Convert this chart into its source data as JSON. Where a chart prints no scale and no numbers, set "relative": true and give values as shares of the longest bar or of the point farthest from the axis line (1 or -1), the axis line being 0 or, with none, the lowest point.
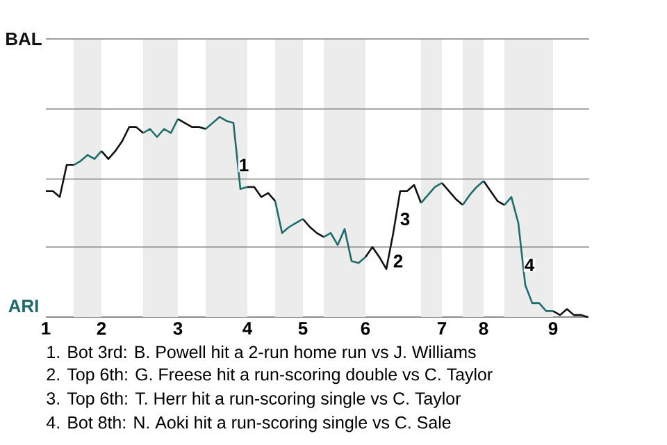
{
  "chart_data": {
    "type": "line",
    "relative": true,
    "categories": [
      "1",
      null,
      null,
      null,
      null,
      null,
      null,
      null,
      "2",
      null,
      null,
      null,
      null,
      null,
      null,
      null,
      null,
      null,
      null,
      "3",
      null,
      null,
      null,
      null,
      null,
      null,
      null,
      null,
      null,
      "4",
      null,
      null,
      null,
      null,
      null,
      null,
      null,
      "5",
      null,
      null,
      null,
      null,
      null,
      null,
      null,
      null,
      "6",
      null,
      null,
      null,
      null,
      null,
      null,
      null,
      null,
      null,
      null,
      "7",
      null,
      null,
      null,
      null,
      null,
      "8",
      null,
      null,
      null,
      null,
      null,
      null,
      null,
      null,
      null,
      "9",
      null,
      null,
      null,
      null,
      null
    ],
    "marker": "none",
    "line_style": "solid",
    "ref_lines": [
      {
        "axis": "y",
        "value": 0.35,
        "color": "#808080"
      },
      {
        "axis": "y",
        "value": 0.69,
        "color": "#808080"
      },
      {
        "axis": "y",
        "value": 1.04,
        "color": "#808080"
      },
      {
        "axis": "y",
        "value": 1.39,
        "color": "#808080"
      }
    ],
    "series": [
      {
        "color": "#111111",
        "values": [
          0.63,
          0.63,
          0.6,
          0.76,
          0.76,
          null,
          null,
          null,
          0.83,
          0.79,
          0.83,
          0.88,
          0.95,
          0.95,
          0.92,
          null,
          null,
          null,
          null,
          0.99,
          0.97,
          0.95,
          0.95,
          0.94,
          null,
          null,
          null,
          null,
          null,
          0.65,
          0.65,
          0.6,
          0.62,
          0.58,
          null,
          null,
          null,
          0.49,
          0.45,
          0.42,
          0.4,
          null,
          null,
          null,
          null,
          null,
          0.3,
          0.35,
          0.3,
          0.24,
          0.42,
          0.63,
          0.63,
          0.66,
          0.57,
          null,
          null,
          0.67,
          0.63,
          0.59,
          0.56,
          null,
          null,
          0.68,
          0.63,
          0.58,
          0.56,
          null,
          null,
          null,
          null,
          null,
          null,
          0.03,
          0.01,
          0.04,
          0.01,
          0.01,
          0
        ]
      },
      {
        "color": "#1f6b6b",
        "values": [
          null,
          null,
          null,
          null,
          0.76,
          0.78,
          0.81,
          0.79,
          0.83,
          null,
          null,
          null,
          null,
          null,
          0.92,
          0.94,
          0.9,
          0.94,
          0.92,
          0.99,
          null,
          null,
          null,
          0.94,
          0.97,
          1,
          0.98,
          0.97,
          0.64,
          0.65,
          null,
          null,
          null,
          0.58,
          0.42,
          0.45,
          0.47,
          0.49,
          null,
          null,
          0.4,
          0.42,
          0.36,
          0.44,
          0.28,
          0.27,
          0.3,
          null,
          null,
          null,
          null,
          null,
          null,
          null,
          0.57,
          0.61,
          0.65,
          0.67,
          null,
          null,
          0.56,
          0.61,
          0.65,
          0.68,
          null,
          null,
          0.56,
          0.6,
          0.47,
          0.16,
          0.07,
          0.07,
          0.03,
          0.03,
          null,
          null,
          null,
          null,
          null
        ]
      }
    ],
    "annotations": [
      "BAL",
      "ARI",
      {
        "text": "1",
        "y": 0.76
      },
      {
        "text": "2",
        "y": 0.28
      },
      {
        "text": "3",
        "y": 0.49
      },
      {
        "text": "4",
        "y": 0.26
      },
      "1. Bot 3rd: B. Powell hit a 2-run home run vs J. Williams",
      "2. Top 6th: G. Freese hit a run-scoring double vs C. Taylor",
      "3. Top 6th: T. Herr hit a run-scoring single vs C. Taylor",
      "4. Bot 8th: N. Aoki hit a run-scoring single vs C. Sale"
    ]
  }
}
